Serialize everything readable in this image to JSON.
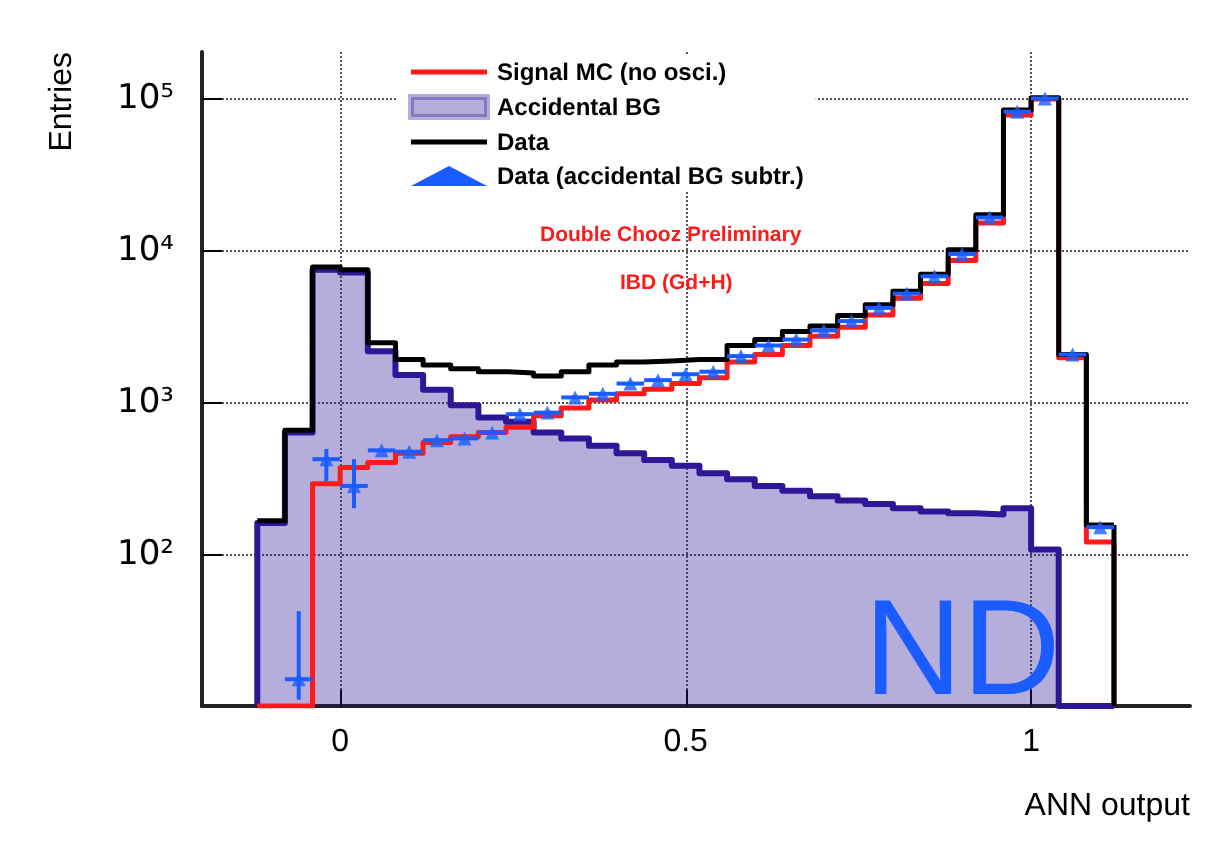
{
  "chart_data": {
    "type": "histogram",
    "xlabel": "ANN output",
    "ylabel": "Entries",
    "bins": [
      -0.12,
      -0.08,
      -0.04,
      0,
      0.04,
      0.08,
      0.12,
      0.16,
      0.2,
      0.24,
      0.28,
      0.32,
      0.36,
      0.4,
      0.44,
      0.48,
      0.52,
      0.56,
      0.6,
      0.64,
      0.68,
      0.72,
      0.76,
      0.8,
      0.84,
      0.88,
      0.92,
      0.96,
      1,
      1.04,
      1.08,
      1.12
    ],
    "series": [
      {
        "name": "Signal MC (no osci.)",
        "color": "#ff1a1a",
        "values": [
          null,
          null,
          290,
          370,
          400,
          460,
          540,
          590,
          630,
          680,
          810,
          910,
          1030,
          1130,
          1210,
          1320,
          1440,
          1830,
          2050,
          2350,
          2700,
          3100,
          3730,
          4800,
          6000,
          8500,
          15000,
          77000,
          98000,
          1950,
          120
        ]
      },
      {
        "name": "Accidental BG",
        "color": "#2e1696",
        "values": [
          160,
          630,
          7400,
          7100,
          2150,
          1500,
          1200,
          950,
          790,
          740,
          630,
          575,
          515,
          460,
          415,
          380,
          340,
          310,
          280,
          260,
          240,
          225,
          213,
          200,
          190,
          185,
          182,
          200,
          107,
          null,
          null
        ]
      },
      {
        "name": "Data",
        "color": "#000000",
        "values": [
          165,
          650,
          7700,
          7400,
          2450,
          1900,
          1750,
          1650,
          1580,
          1550,
          1480,
          1580,
          1750,
          1830,
          1860,
          1900,
          1900,
          2350,
          2570,
          2900,
          3150,
          3700,
          4350,
          5350,
          6900,
          10000,
          17000,
          83000,
          100000,
          2050,
          155
        ]
      },
      {
        "name": "Data (accidental BG subtr.)",
        "type": "scatter",
        "color": "#1a5cff",
        "marker": "triangle",
        "x": [
          -0.06,
          -0.02,
          0.02,
          0.06,
          0.1,
          0.14,
          0.18,
          0.22,
          0.26,
          0.3,
          0.34,
          0.38,
          0.42,
          0.46,
          0.5,
          0.54,
          0.58,
          0.62,
          0.66,
          0.7,
          0.74,
          0.78,
          0.82,
          0.86,
          0.9,
          0.94,
          0.98,
          1.02,
          1.06,
          1.1
        ],
        "values": [
          15,
          420,
          280,
          480,
          470,
          560,
          575,
          630,
          830,
          850,
          1070,
          1130,
          1320,
          1390,
          1520,
          1580,
          2000,
          2350,
          2570,
          2950,
          3400,
          4150,
          5150,
          6700,
          9400,
          16300,
          81000,
          99000,
          2050,
          150
        ],
        "errors": [
          [
            11,
            42
          ],
          [
            300,
            490
          ],
          [
            200,
            420
          ],
          null,
          null,
          null,
          null,
          null,
          null,
          null,
          null,
          null,
          null,
          null,
          null,
          null,
          null,
          null,
          null,
          null,
          null,
          null,
          null,
          null,
          null,
          null,
          null,
          null,
          null,
          null
        ],
        "xerrors": [
          0.02,
          0.02,
          0.02,
          0.02,
          0.02,
          0.02,
          0.02,
          0.02,
          0.02,
          0.02,
          0.02,
          0.02,
          0.02,
          0.02,
          0.02,
          0.02,
          0.02,
          0.02,
          0.02,
          0.02,
          0.02,
          0.02,
          0.02,
          0.02,
          0.02,
          0.02,
          0.02,
          0.02,
          0.02,
          0.02
        ]
      }
    ],
    "xlim": [
      -0.2,
      1.23
    ],
    "xticks": [
      0,
      0.5,
      1
    ],
    "ylim": [
      10,
      200000
    ],
    "log": "y",
    "yticks": [
      {
        "value": 100,
        "label": "10²"
      },
      {
        "value": 1000,
        "label": "10³"
      },
      {
        "value": 10000,
        "label": "10⁴"
      },
      {
        "value": 100000,
        "label": "10⁵"
      }
    ],
    "grid": true,
    "legend": "top",
    "annotations": [
      "Double Chooz Preliminary",
      "IBD (Gd+H)",
      "ND"
    ]
  }
}
